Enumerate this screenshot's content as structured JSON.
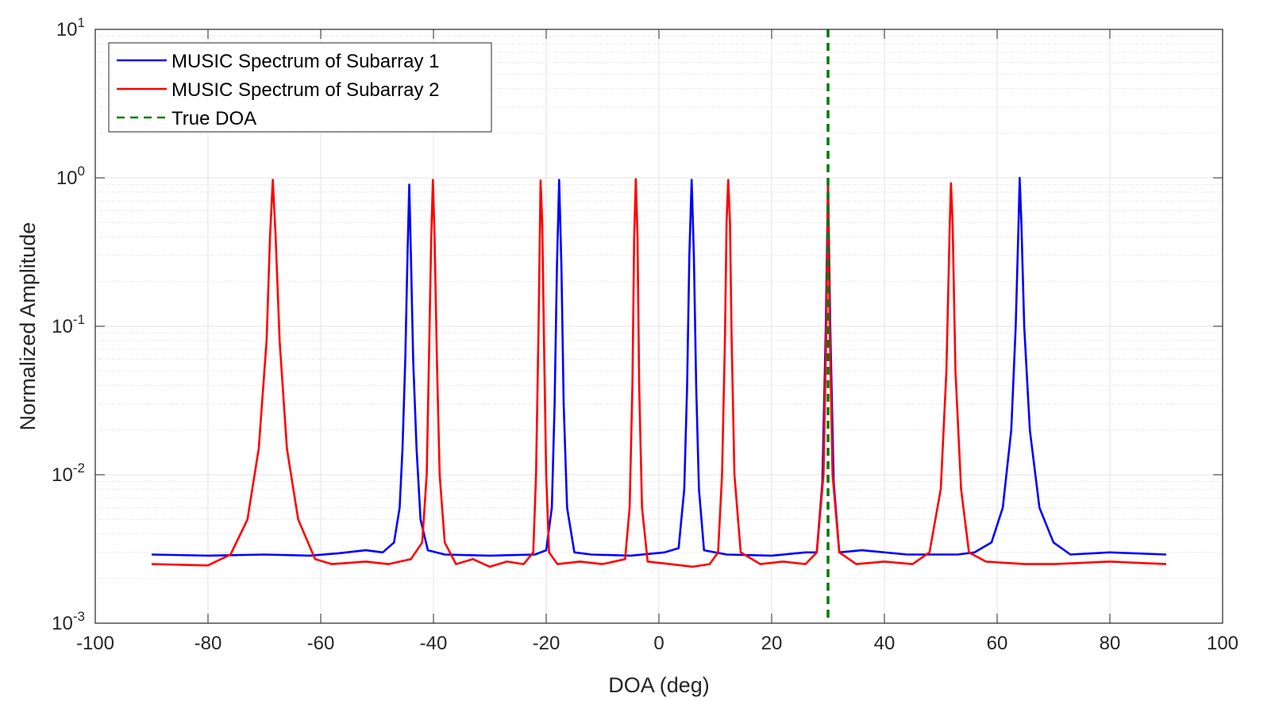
{
  "chart_data": {
    "type": "line",
    "xlabel": "DOA (deg)",
    "ylabel": "Normalized Amplitude",
    "xlim": [
      -100,
      100
    ],
    "ylim": [
      0.001,
      10
    ],
    "y_scale": "log",
    "grid": true,
    "legend_position": "top-left",
    "x_ticks": [
      -100,
      -80,
      -60,
      -40,
      -20,
      0,
      20,
      40,
      60,
      80,
      100
    ],
    "y_ticks": [
      {
        "value": 0.001,
        "base": "10",
        "exp": "-3"
      },
      {
        "value": 0.01,
        "base": "10",
        "exp": "-2"
      },
      {
        "value": 0.1,
        "base": "10",
        "exp": "-1"
      },
      {
        "value": 1,
        "base": "10",
        "exp": "0"
      },
      {
        "value": 10,
        "base": "10",
        "exp": "1"
      }
    ],
    "series": [
      {
        "name": "MUSIC Spectrum of Subarray 1",
        "color": "#0000ff",
        "style": "solid",
        "points": [
          [
            -90,
            0.0029
          ],
          [
            -80,
            0.00285
          ],
          [
            -70,
            0.0029
          ],
          [
            -62,
            0.00285
          ],
          [
            -57,
            0.00295
          ],
          [
            -52,
            0.0031
          ],
          [
            -49,
            0.003
          ],
          [
            -47,
            0.0035
          ],
          [
            -46,
            0.006
          ],
          [
            -45.5,
            0.015
          ],
          [
            -45,
            0.06
          ],
          [
            -44.6,
            0.3
          ],
          [
            -44.3,
            0.9
          ],
          [
            -44,
            0.3
          ],
          [
            -43.6,
            0.06
          ],
          [
            -43,
            0.015
          ],
          [
            -42.3,
            0.005
          ],
          [
            -41,
            0.0031
          ],
          [
            -38,
            0.0029
          ],
          [
            -30,
            0.00285
          ],
          [
            -22,
            0.0029
          ],
          [
            -20,
            0.0031
          ],
          [
            -19,
            0.006
          ],
          [
            -18.5,
            0.03
          ],
          [
            -18.1,
            0.25
          ],
          [
            -17.7,
            0.97
          ],
          [
            -17.3,
            0.25
          ],
          [
            -16.9,
            0.03
          ],
          [
            -16.3,
            0.006
          ],
          [
            -15,
            0.003
          ],
          [
            -12,
            0.0029
          ],
          [
            -5,
            0.00285
          ],
          [
            1,
            0.003
          ],
          [
            3.5,
            0.0032
          ],
          [
            4.5,
            0.008
          ],
          [
            5,
            0.04
          ],
          [
            5.4,
            0.3
          ],
          [
            5.8,
            0.97
          ],
          [
            6.2,
            0.3
          ],
          [
            6.6,
            0.04
          ],
          [
            7.1,
            0.008
          ],
          [
            8,
            0.0031
          ],
          [
            12,
            0.0029
          ],
          [
            20,
            0.00285
          ],
          [
            26,
            0.003
          ],
          [
            28,
            0.003
          ],
          [
            29,
            0.009
          ],
          [
            29.6,
            0.1
          ],
          [
            30,
            0.97
          ],
          [
            30.4,
            0.1
          ],
          [
            31,
            0.009
          ],
          [
            32,
            0.003
          ],
          [
            36,
            0.0031
          ],
          [
            44,
            0.0029
          ],
          [
            53,
            0.0029
          ],
          [
            56,
            0.003
          ],
          [
            59,
            0.0035
          ],
          [
            61,
            0.006
          ],
          [
            62.5,
            0.02
          ],
          [
            63.3,
            0.1
          ],
          [
            63.8,
            0.5
          ],
          [
            64,
            1.0
          ],
          [
            64.3,
            0.5
          ],
          [
            64.8,
            0.1
          ],
          [
            65.8,
            0.02
          ],
          [
            67.5,
            0.006
          ],
          [
            70,
            0.0035
          ],
          [
            73,
            0.0029
          ],
          [
            80,
            0.003
          ],
          [
            90,
            0.0029
          ]
        ]
      },
      {
        "name": "MUSIC Spectrum of Subarray 2",
        "color": "#ff0000",
        "style": "solid",
        "points": [
          [
            -90,
            0.0025
          ],
          [
            -80,
            0.00245
          ],
          [
            -76,
            0.0029
          ],
          [
            -73,
            0.005
          ],
          [
            -71,
            0.015
          ],
          [
            -69.6,
            0.08
          ],
          [
            -69,
            0.4
          ],
          [
            -68.5,
            0.97
          ],
          [
            -68,
            0.4
          ],
          [
            -67.3,
            0.08
          ],
          [
            -66,
            0.015
          ],
          [
            -64,
            0.005
          ],
          [
            -61,
            0.0027
          ],
          [
            -58,
            0.0025
          ],
          [
            -52,
            0.0026
          ],
          [
            -48,
            0.0025
          ],
          [
            -44,
            0.0027
          ],
          [
            -42,
            0.0035
          ],
          [
            -41.2,
            0.01
          ],
          [
            -40.8,
            0.06
          ],
          [
            -40.4,
            0.4
          ],
          [
            -40.1,
            0.97
          ],
          [
            -39.8,
            0.4
          ],
          [
            -39.4,
            0.06
          ],
          [
            -38.9,
            0.01
          ],
          [
            -38,
            0.0035
          ],
          [
            -36,
            0.0025
          ],
          [
            -33,
            0.0027
          ],
          [
            -30,
            0.0024
          ],
          [
            -27,
            0.0026
          ],
          [
            -24,
            0.0025
          ],
          [
            -22.3,
            0.003
          ],
          [
            -21.8,
            0.01
          ],
          [
            -21.4,
            0.08
          ],
          [
            -21.1,
            0.5
          ],
          [
            -21,
            0.96
          ],
          [
            -20.7,
            0.5
          ],
          [
            -20.4,
            0.08
          ],
          [
            -20,
            0.01
          ],
          [
            -19.5,
            0.003
          ],
          [
            -18,
            0.0025
          ],
          [
            -14,
            0.0026
          ],
          [
            -10,
            0.0025
          ],
          [
            -6,
            0.0027
          ],
          [
            -5.2,
            0.006
          ],
          [
            -4.7,
            0.04
          ],
          [
            -4.4,
            0.4
          ],
          [
            -4.1,
            0.98
          ],
          [
            -3.8,
            0.4
          ],
          [
            -3.5,
            0.04
          ],
          [
            -3,
            0.006
          ],
          [
            -2,
            0.0026
          ],
          [
            2,
            0.0025
          ],
          [
            6,
            0.0024
          ],
          [
            9,
            0.0025
          ],
          [
            10.5,
            0.003
          ],
          [
            11.2,
            0.01
          ],
          [
            11.7,
            0.08
          ],
          [
            12,
            0.5
          ],
          [
            12.3,
            0.97
          ],
          [
            12.6,
            0.5
          ],
          [
            12.9,
            0.08
          ],
          [
            13.4,
            0.01
          ],
          [
            14.5,
            0.003
          ],
          [
            18,
            0.0025
          ],
          [
            22,
            0.0026
          ],
          [
            26,
            0.0025
          ],
          [
            28,
            0.003
          ],
          [
            29.2,
            0.01
          ],
          [
            29.7,
            0.1
          ],
          [
            30,
            0.96
          ],
          [
            30.3,
            0.1
          ],
          [
            30.8,
            0.01
          ],
          [
            32,
            0.003
          ],
          [
            35,
            0.0025
          ],
          [
            40,
            0.0026
          ],
          [
            45,
            0.0025
          ],
          [
            48,
            0.003
          ],
          [
            50,
            0.008
          ],
          [
            51,
            0.05
          ],
          [
            51.6,
            0.5
          ],
          [
            51.8,
            0.92
          ],
          [
            52.1,
            0.5
          ],
          [
            52.6,
            0.05
          ],
          [
            53.6,
            0.008
          ],
          [
            55,
            0.003
          ],
          [
            58,
            0.0026
          ],
          [
            65,
            0.0025
          ],
          [
            70,
            0.0025
          ],
          [
            80,
            0.0026
          ],
          [
            90,
            0.0025
          ]
        ]
      },
      {
        "name": "True DOA",
        "color": "#007a00",
        "style": "dashed",
        "x_line": 30
      }
    ]
  }
}
